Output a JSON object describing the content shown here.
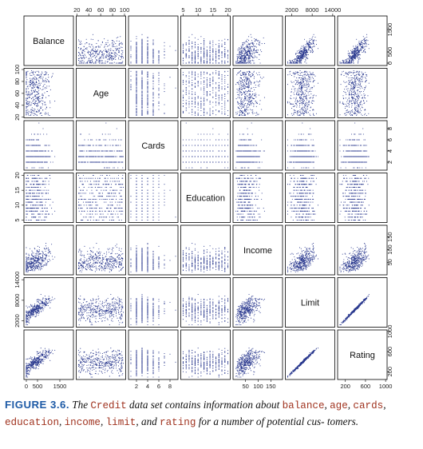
{
  "caption": {
    "label": "FIGURE 3.6.",
    "p1": " The ",
    "dataset": "Credit",
    "p2": " data set contains information about ",
    "v1": "balance",
    "sep1": ", ",
    "v2": "age",
    "sep2": ", ",
    "v3": "cards",
    "sep3": ", ",
    "v4": "education",
    "sep4": ", ",
    "v5": "income",
    "sep5": ", ",
    "v6": "limit",
    "p3": ", and ",
    "v7": "rating",
    "p4": " for a number of potential cus- tomers."
  },
  "colors": {
    "points": "#2b3a8f",
    "frame": "#000000",
    "caption_label": "#1d5aa6",
    "code": "#a0331f"
  },
  "chart_data": {
    "type": "scatter-matrix",
    "n_points": 400,
    "variables": [
      {
        "name": "Balance",
        "ticks": [
          "0",
          "500",
          "1500"
        ],
        "tick_values": [
          0,
          500,
          1500
        ],
        "range": [
          0,
          2000
        ]
      },
      {
        "name": "Age",
        "ticks": [
          "20",
          "40",
          "60",
          "80",
          "100"
        ],
        "tick_values": [
          20,
          40,
          60,
          80,
          100
        ],
        "range": [
          23,
          98
        ]
      },
      {
        "name": "Cards",
        "ticks": [
          "2",
          "4",
          "6",
          "8"
        ],
        "tick_values": [
          2,
          4,
          6,
          8
        ],
        "range": [
          1,
          9
        ]
      },
      {
        "name": "Education",
        "ticks": [
          "5",
          "10",
          "15",
          "20"
        ],
        "tick_values": [
          5,
          10,
          15,
          20
        ],
        "range": [
          5,
          20
        ]
      },
      {
        "name": "Income",
        "ticks": [
          "50",
          "100",
          "150"
        ],
        "tick_values": [
          50,
          100,
          150
        ],
        "range": [
          10,
          187
        ]
      },
      {
        "name": "Limit",
        "ticks": [
          "2000",
          "8000",
          "14000"
        ],
        "tick_values": [
          2000,
          8000,
          14000
        ],
        "range": [
          855,
          13913
        ]
      },
      {
        "name": "Rating",
        "ticks": [
          "200",
          "600",
          "1000"
        ],
        "tick_values": [
          200,
          600,
          1000
        ],
        "range": [
          93,
          982
        ]
      }
    ],
    "axis_placement": {
      "top": [
        1,
        3,
        5
      ],
      "bottom": [
        0,
        2,
        4,
        6
      ],
      "left": [
        1,
        3,
        5
      ],
      "right": [
        0,
        2,
        4,
        6
      ]
    },
    "top_tick_labels": {
      "1": [
        "20",
        "40",
        "60",
        "80",
        "100"
      ],
      "3": [
        "5",
        "10",
        "15",
        "20"
      ],
      "5": [
        "2000",
        "8000",
        "14000"
      ]
    },
    "bottom_tick_labels": {
      "2": [
        "2",
        "4",
        "6",
        "8"
      ],
      "4": [
        "50",
        "100",
        "150"
      ],
      "6": [
        "200",
        "600",
        "1000"
      ],
      "0": [
        "0",
        "500",
        "1500"
      ]
    },
    "left_tick_labels": {
      "1": [
        "20",
        "40",
        "60",
        "80",
        "100"
      ],
      "3": [
        "5",
        "10",
        "15",
        "20"
      ],
      "5": [
        "2000",
        "8000",
        "14000"
      ]
    },
    "right_tick_labels": {
      "0": [
        "0",
        "500",
        "1500"
      ],
      "2": [
        "2",
        "4",
        "6",
        "8"
      ],
      "4": [
        "50",
        "100",
        "150"
      ],
      "6": [
        "200",
        "600",
        "1000"
      ]
    }
  }
}
